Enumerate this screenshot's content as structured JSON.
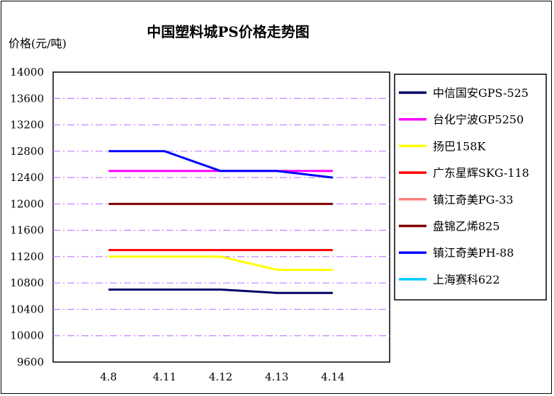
{
  "chart_data": {
    "type": "line",
    "title": "中国塑料城PS价格走势图",
    "ylabel": "价格(元/吨)",
    "xlabel": "",
    "categories": [
      "4.8",
      "4.11",
      "4.12",
      "4.13",
      "4.14"
    ],
    "ylim": [
      9600,
      14000
    ],
    "yticks": [
      9600,
      10000,
      10400,
      10800,
      11200,
      11600,
      12000,
      12400,
      12800,
      13200,
      13600,
      14000
    ],
    "grid": "horizontal dash-dot, violet",
    "legend_position": "right",
    "series": [
      {
        "name": "中信国安GPS-525",
        "color": "#000066",
        "values": [
          10700,
          10700,
          10700,
          10650,
          10650
        ]
      },
      {
        "name": "台化宁波GP5250",
        "color": "#ff00ff",
        "values": [
          12500,
          12500,
          12500,
          12500,
          12500
        ]
      },
      {
        "name": "扬巴158K",
        "color": "#ffff00",
        "values": [
          11200,
          11200,
          11200,
          11000,
          11000
        ]
      },
      {
        "name": "广东星辉SKG-118",
        "color": "#ff0000",
        "values": [
          11300,
          11300,
          11300,
          11300,
          11300
        ]
      },
      {
        "name": "镇江奇美PG-33",
        "color": "#ff8080",
        "values": [
          null,
          null,
          null,
          null,
          null
        ]
      },
      {
        "name": "盘锦乙烯825",
        "color": "#800000",
        "values": [
          12000,
          12000,
          12000,
          12000,
          12000
        ]
      },
      {
        "name": "镇江奇美PH-88",
        "color": "#0000ff",
        "values": [
          12800,
          12800,
          12500,
          12500,
          12400
        ]
      },
      {
        "name": "上海赛科622",
        "color": "#00ccff",
        "values": [
          null,
          null,
          null,
          null,
          null
        ]
      }
    ]
  }
}
